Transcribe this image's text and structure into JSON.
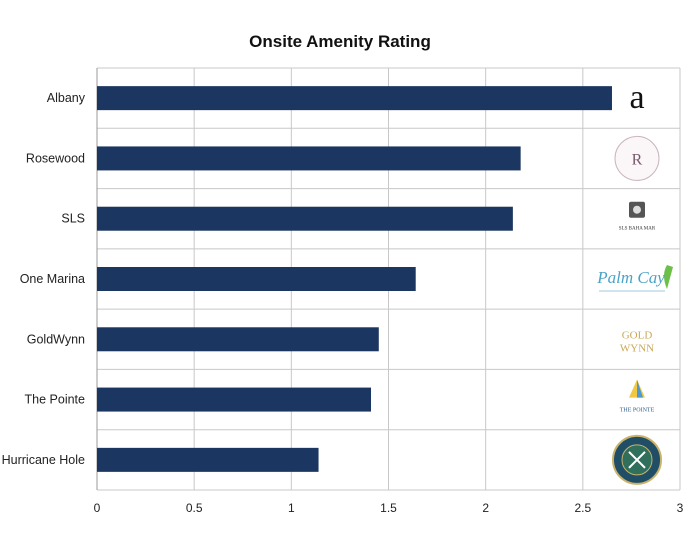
{
  "chart_data": {
    "type": "bar",
    "orientation": "horizontal",
    "title": "Onsite Amenity Rating",
    "xlabel": "",
    "ylabel": "",
    "xlim": [
      0,
      3
    ],
    "x_ticks": [
      "0",
      "0.5",
      "1",
      "1.5",
      "2",
      "2.5",
      "3"
    ],
    "grid": true,
    "categories": [
      "Albany",
      "Rosewood",
      "SLS",
      "One Marina",
      "GoldWynn",
      "The Pointe",
      "Hurricane Hole"
    ],
    "values": [
      2.65,
      2.18,
      2.14,
      1.64,
      1.45,
      1.41,
      1.14
    ],
    "bar_color": "#1b3660",
    "logos": [
      {
        "name": "albany-logo",
        "text": "a",
        "color": "#111111"
      },
      {
        "name": "rosewood-logo",
        "text": "R",
        "color": "#7a5a6a"
      },
      {
        "name": "sls-logo",
        "text": "SLS BAHA MAR",
        "color": "#333333"
      },
      {
        "name": "palm-cay-logo",
        "text": "Palm Cay",
        "color": "#4aa3c8"
      },
      {
        "name": "goldwynn-logo",
        "text": "GOLD WYNN",
        "color": "#c9a857"
      },
      {
        "name": "the-pointe-logo",
        "text": "THE POINTE",
        "color": "#2a5a8a"
      },
      {
        "name": "hurricane-hole-logo",
        "text": "HURRICANE HOLE",
        "color": "#1f4e66"
      }
    ]
  }
}
